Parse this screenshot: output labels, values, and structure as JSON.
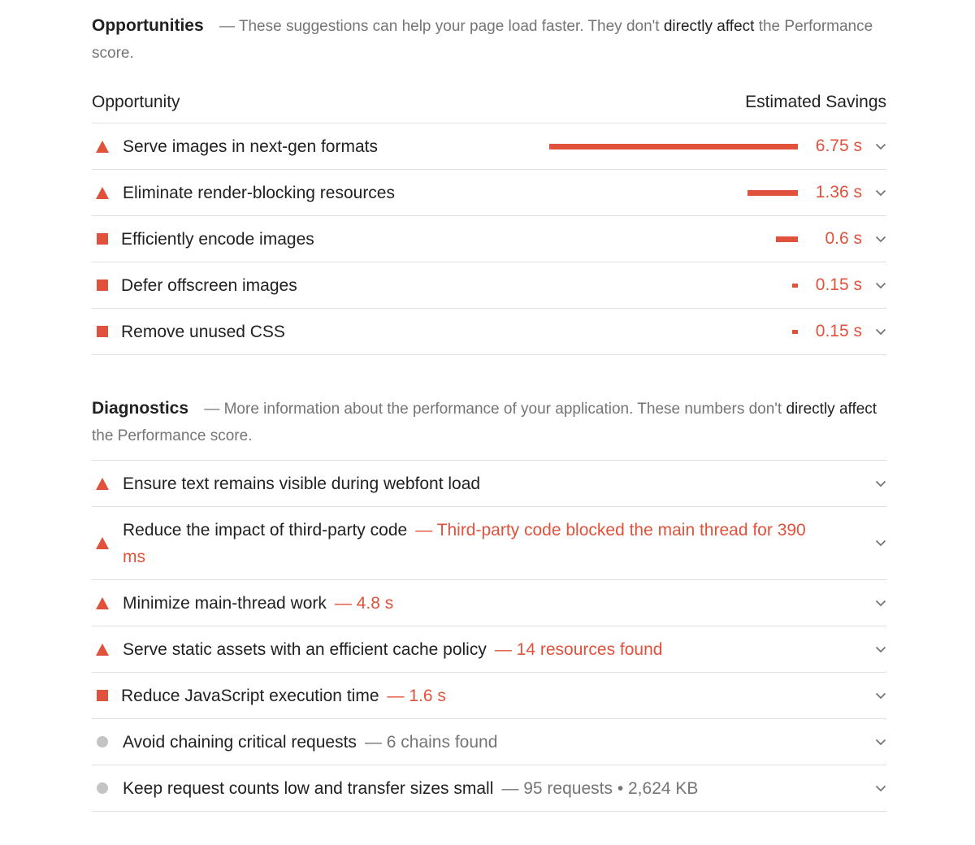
{
  "opportunities": {
    "title": "Opportunities",
    "desc_before": "— These suggestions can help your page load faster. They don't ",
    "desc_strong": "directly affect",
    "desc_after": " the Performance score.",
    "col_opportunity": "Opportunity",
    "col_savings": "Estimated Savings",
    "items": [
      {
        "icon": "triangle-warning-icon",
        "label": "Serve images in next-gen formats",
        "saving": "6.75 s",
        "savings_seconds": 6.75
      },
      {
        "icon": "triangle-warning-icon",
        "label": "Eliminate render-blocking resources",
        "saving": "1.36 s",
        "savings_seconds": 1.36
      },
      {
        "icon": "square-average-icon",
        "label": "Efficiently encode images",
        "saving": "0.6 s",
        "savings_seconds": 0.6
      },
      {
        "icon": "square-average-icon",
        "label": "Defer offscreen images",
        "saving": "0.15 s",
        "savings_seconds": 0.15
      },
      {
        "icon": "square-average-icon",
        "label": "Remove unused CSS",
        "saving": "0.15 s",
        "savings_seconds": 0.15
      }
    ]
  },
  "diagnostics": {
    "title": "Diagnostics",
    "desc_before": "— More information about the performance of your application. These numbers don't ",
    "desc_strong": "directly affect",
    "desc_after": " the Performance score.",
    "items": [
      {
        "icon": "triangle-warning-icon",
        "label": "Ensure text remains visible during webfont load",
        "detail": "",
        "detail_color": ""
      },
      {
        "icon": "triangle-warning-icon",
        "label": "Reduce the impact of third-party code",
        "detail": "— Third-party code blocked the main thread for 390 ms",
        "detail_color": "red"
      },
      {
        "icon": "triangle-warning-icon",
        "label": "Minimize main-thread work",
        "detail": "— 4.8 s",
        "detail_color": "red"
      },
      {
        "icon": "triangle-warning-icon",
        "label": "Serve static assets with an efficient cache policy",
        "detail": "— 14 resources found",
        "detail_color": "red"
      },
      {
        "icon": "square-average-icon",
        "label": "Reduce JavaScript execution time",
        "detail": "— 1.6 s",
        "detail_color": "red"
      },
      {
        "icon": "circle-info-icon",
        "label": "Avoid chaining critical requests",
        "detail": "— 6 chains found",
        "detail_color": "grey"
      },
      {
        "icon": "circle-info-icon",
        "label": "Keep request counts low and transfer sizes small",
        "detail": "— 95 requests • 2,624 KB",
        "detail_color": "grey"
      }
    ]
  },
  "colors": {
    "fail": "#e0523b",
    "average": "#e0523b",
    "info": "#c4c4c4",
    "text": "#212121",
    "muted": "#757575"
  }
}
